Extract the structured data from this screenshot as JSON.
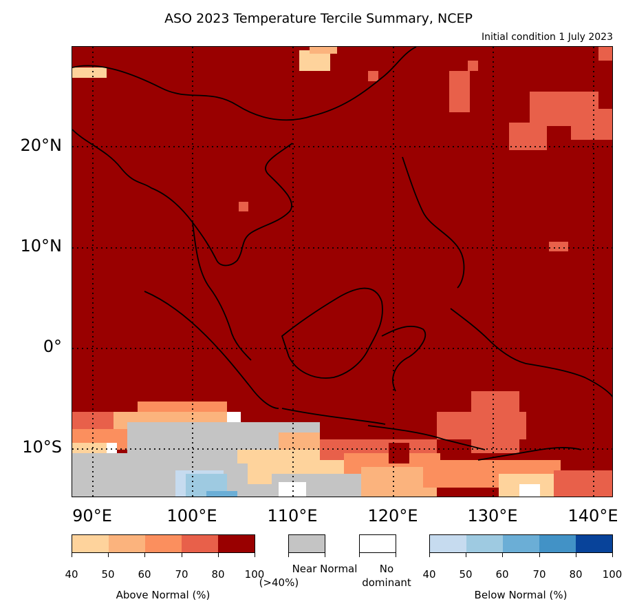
{
  "title": "ASO 2023 Temperature Tercile Summary, NCEP",
  "subtitle": "Initial condition 1 July 2023",
  "map": {
    "lat_labels": [
      "20°N",
      "10°N",
      "0°",
      "10°S"
    ],
    "lon_labels": [
      "90°E",
      "100°E",
      "110°E",
      "120°E",
      "130°E",
      "140°E"
    ],
    "dominant_category": "Above Normal 80-100%",
    "colors": {
      "above_80_100": "#990000",
      "above_70_80": "#e8604a",
      "above_60_70": "#fb8f5e",
      "above_50_60": "#fbb37d",
      "above_40_50": "#fed39c",
      "near_normal": "#c4c4c4",
      "no_dominant": "#ffffff",
      "below_40_50": "#c6dbef",
      "below_50_60": "#9ecae1",
      "below_60_70": "#6baed6",
      "below_70_80": "#4292c6",
      "below_80_100": "#08439a"
    }
  },
  "legend": {
    "above": {
      "caption": "Above Normal (%)",
      "ticks": [
        "40",
        "50",
        "60",
        "70",
        "80",
        "100"
      ],
      "colors": [
        "#fed39c",
        "#fbb37d",
        "#fb8f5e",
        "#e8604a",
        "#990000"
      ]
    },
    "near_normal": {
      "label_line1": "Near Normal",
      "label_line2": "(>40%)",
      "color": "#c4c4c4"
    },
    "no_dominant": {
      "label_line1": "No",
      "label_line2": "dominant",
      "color": "#ffffff"
    },
    "below": {
      "caption": "Below Normal (%)",
      "ticks": [
        "40",
        "50",
        "60",
        "70",
        "80",
        "100"
      ],
      "colors": [
        "#c6dbef",
        "#9ecae1",
        "#6baed6",
        "#4292c6",
        "#08439a"
      ]
    }
  }
}
